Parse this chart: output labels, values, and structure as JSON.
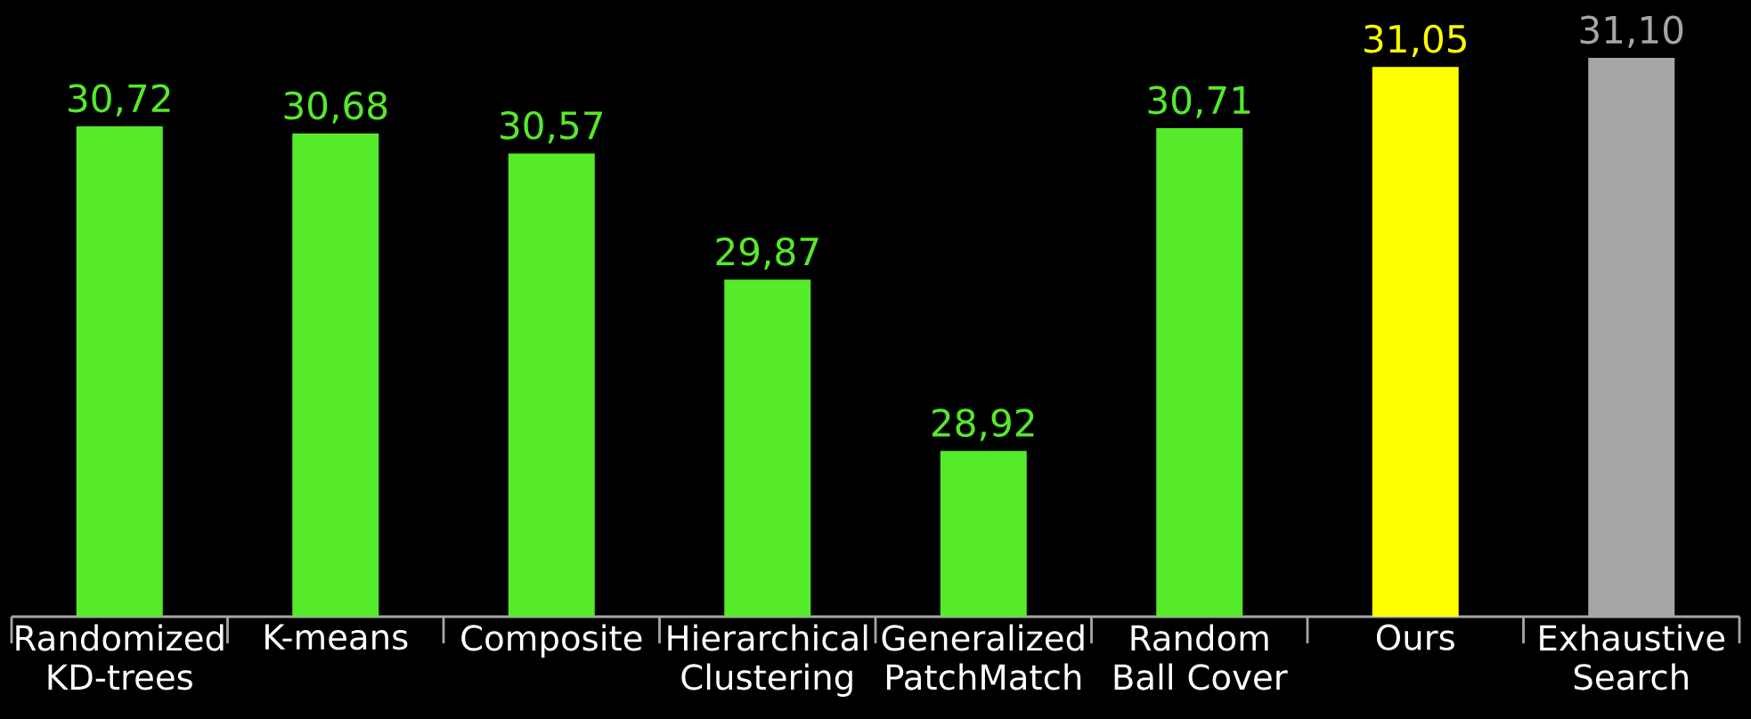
{
  "chart_data": {
    "type": "bar",
    "categories": [
      "Randomized KD-trees",
      "K-means",
      "Composite",
      "Hierarchical Clustering",
      "Generalized PatchMatch",
      "Random Ball Cover",
      "Ours",
      "Exhaustive Search"
    ],
    "values": [
      30.72,
      30.68,
      30.57,
      29.87,
      28.92,
      30.71,
      31.05,
      31.1
    ],
    "value_labels": [
      "30,72",
      "30,68",
      "30,57",
      "29,87",
      "28,92",
      "30,71",
      "31,05",
      "31,10"
    ],
    "colors": [
      "#55ea2a",
      "#55ea2a",
      "#55ea2a",
      "#55ea2a",
      "#55ea2a",
      "#55ea2a",
      "#ffff00",
      "#a6a6a6"
    ],
    "ylim": [
      28,
      31.1
    ]
  }
}
